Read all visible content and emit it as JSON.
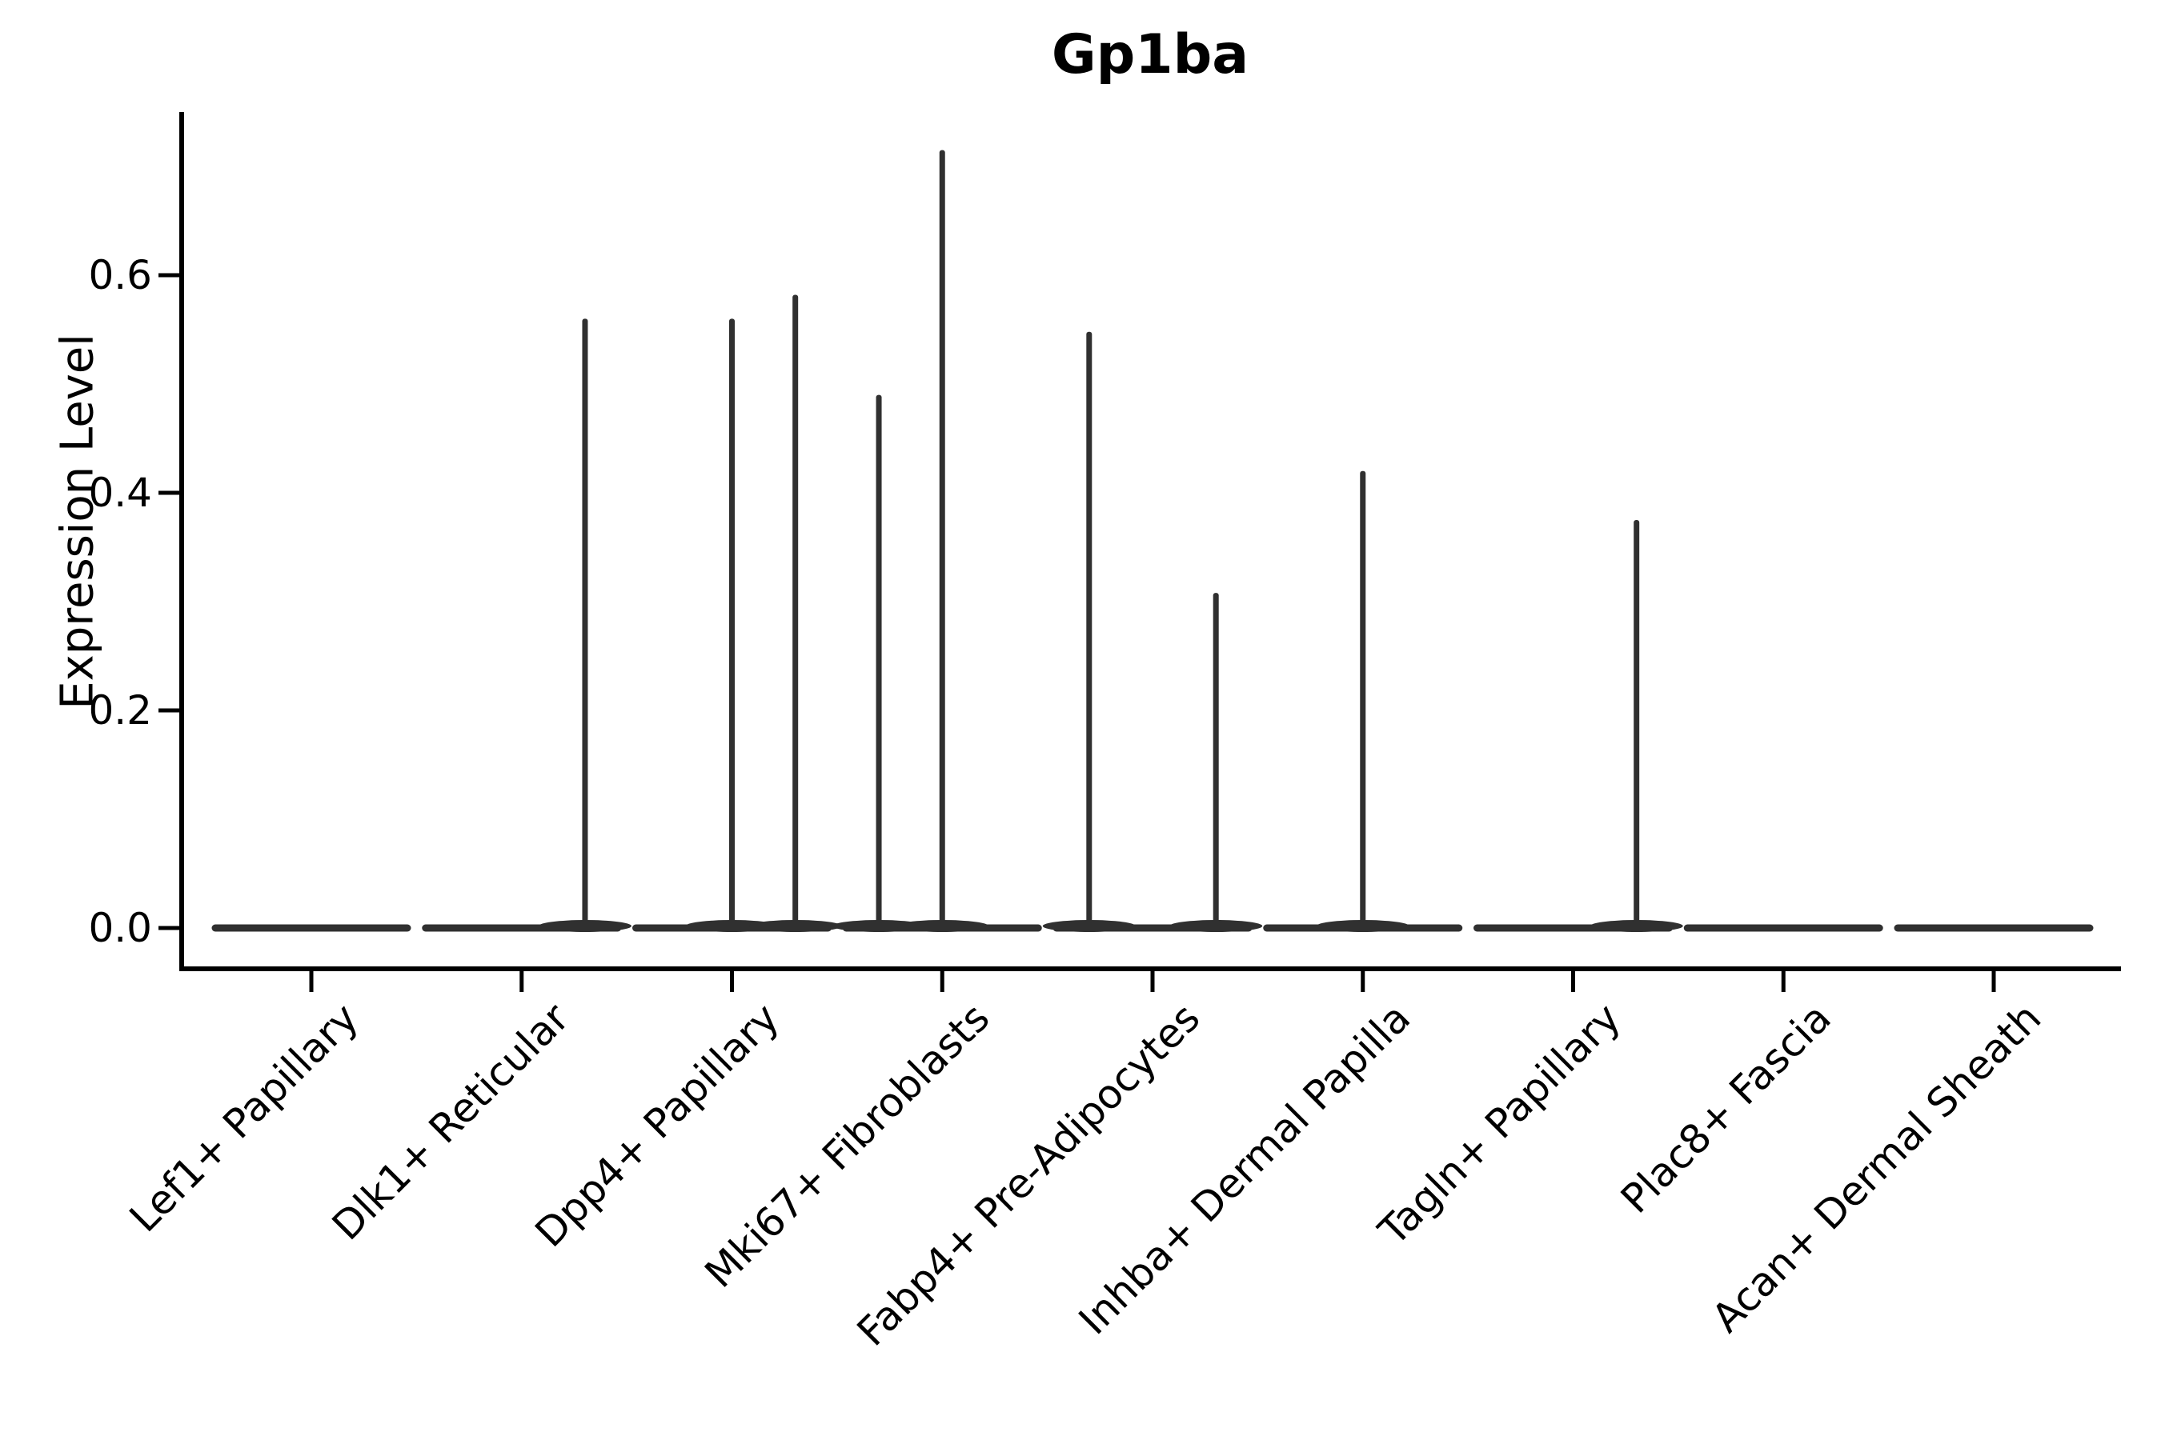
{
  "title": "Gp1ba",
  "chart_data": {
    "type": "violin",
    "title": "Gp1ba",
    "xlabel": "",
    "ylabel": "Expression Level",
    "legend": null,
    "grid": false,
    "background": "#ffffff",
    "axis_color": "#000000",
    "violin_color": "#303030",
    "ylim": [
      -0.038,
      0.75
    ],
    "y_ticks": [
      0.0,
      0.2,
      0.4,
      0.6
    ],
    "y_tick_labels": [
      "0.0",
      "0.2",
      "0.4",
      "0.6"
    ],
    "x_tick_rotation_deg": 45,
    "categories": [
      "Lef1+ Papillary",
      "Dlk1+ Reticular",
      "Dpp4+ Papillary",
      "Mki67+ Fibroblasts",
      "Fabp4+ Pre-Adipocytes",
      "Inhba+ Dermal Papilla",
      "Tagln+ Papillary",
      "Plac8+ Fascia",
      "Acan+ Dermal Sheath"
    ],
    "description": "Violin plot of Gp1ba expression per fibroblast cluster; every violin collapses to a flat line at 0 with thin density spikes marking rare expressing cells.",
    "series": [
      {
        "category": "Lef1+ Papillary",
        "baseline_value": 0.0,
        "spikes": []
      },
      {
        "category": "Dlk1+ Reticular",
        "baseline_value": 0.0,
        "spikes": [
          {
            "x_offset_frac": 0.66,
            "value": 0.56
          }
        ]
      },
      {
        "category": "Dpp4+ Papillary",
        "baseline_value": 0.0,
        "spikes": [
          {
            "x_offset_frac": 0.0,
            "value": 0.56
          },
          {
            "x_offset_frac": 0.66,
            "value": 0.582
          }
        ]
      },
      {
        "category": "Mki67+ Fibroblasts",
        "baseline_value": 0.0,
        "spikes": [
          {
            "x_offset_frac": -0.66,
            "value": 0.49
          },
          {
            "x_offset_frac": 0.0,
            "value": 0.715
          }
        ]
      },
      {
        "category": "Fabp4+ Pre-Adipocytes",
        "baseline_value": 0.0,
        "spikes": [
          {
            "x_offset_frac": -0.66,
            "value": 0.548
          },
          {
            "x_offset_frac": 0.66,
            "value": 0.308
          }
        ]
      },
      {
        "category": "Inhba+ Dermal Papilla",
        "baseline_value": 0.0,
        "spikes": [
          {
            "x_offset_frac": 0.0,
            "value": 0.42
          }
        ]
      },
      {
        "category": "Tagln+ Papillary",
        "baseline_value": 0.0,
        "spikes": [
          {
            "x_offset_frac": 0.66,
            "value": 0.375
          }
        ]
      },
      {
        "category": "Plac8+ Fascia",
        "baseline_value": 0.0,
        "spikes": []
      },
      {
        "category": "Acan+ Dermal Sheath",
        "baseline_value": 0.0,
        "spikes": []
      }
    ]
  }
}
